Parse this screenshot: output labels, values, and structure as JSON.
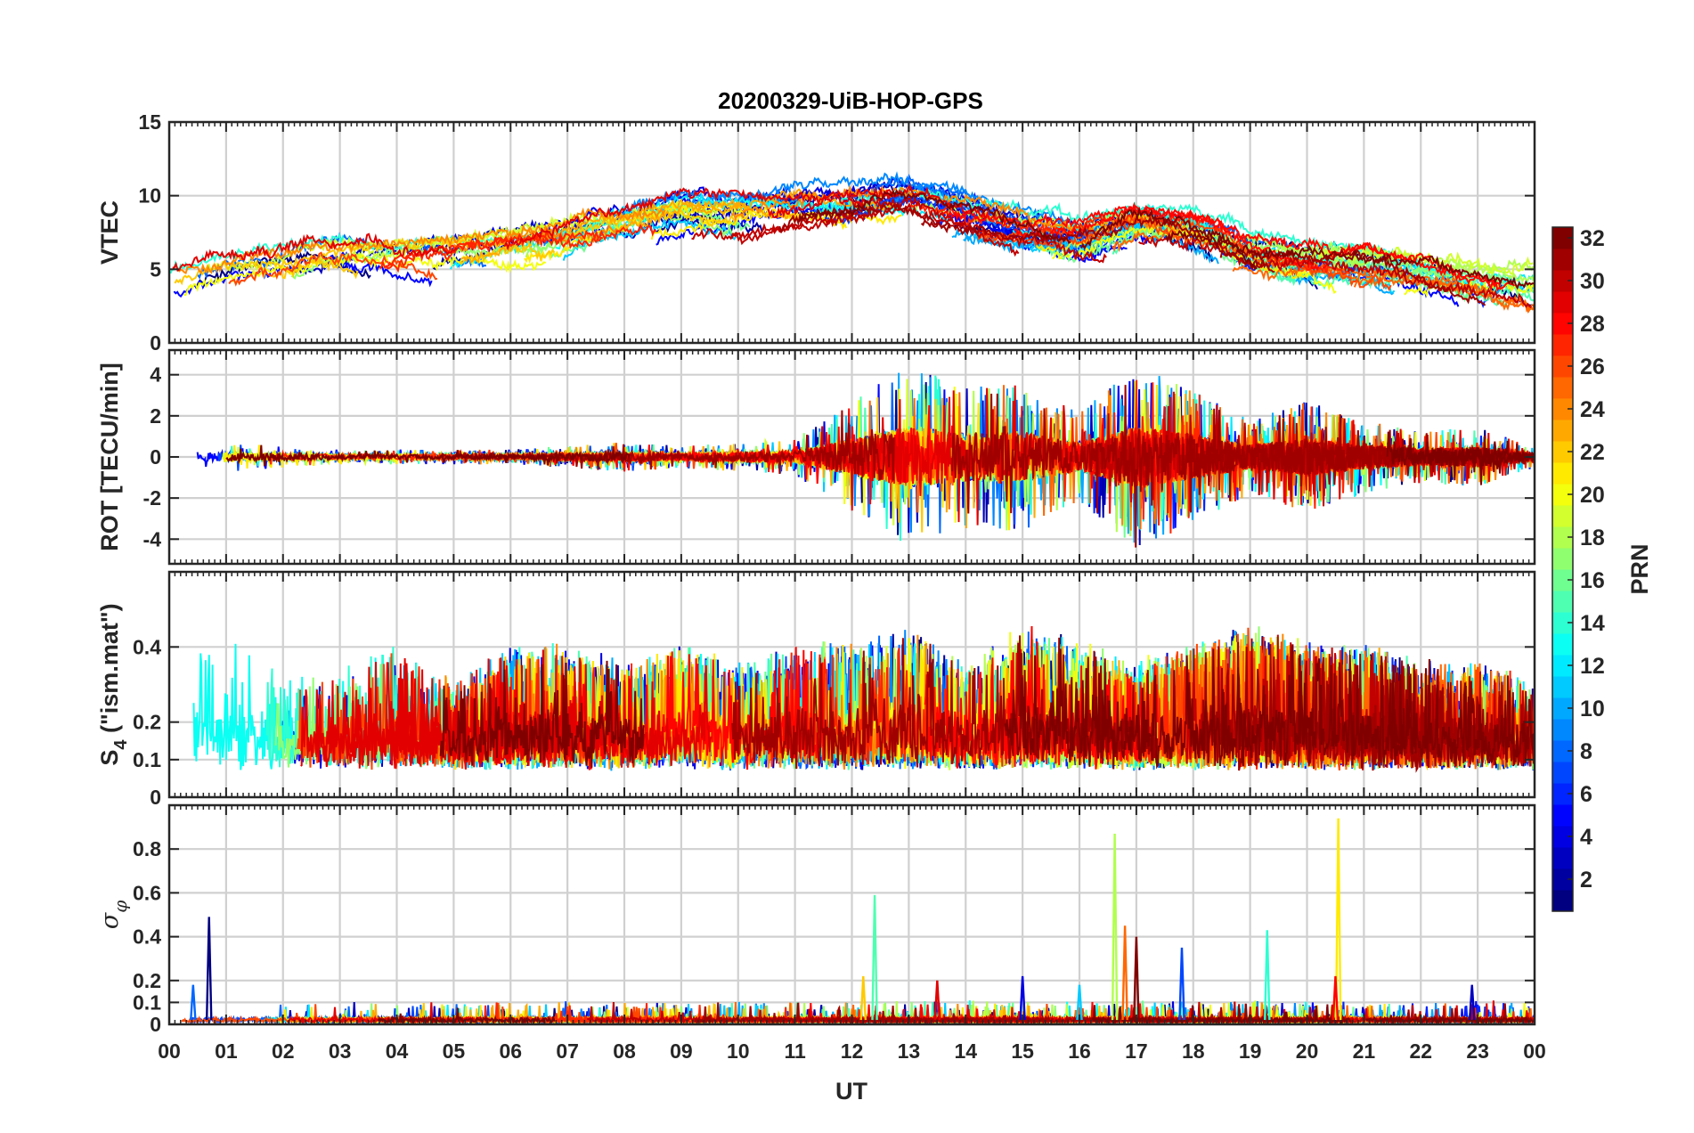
{
  "chart_data": {
    "type": "line",
    "title": "20200329-UiB-HOP-GPS",
    "xlabel": "UT",
    "x_tick_labels": [
      "00",
      "01",
      "02",
      "03",
      "04",
      "05",
      "06",
      "07",
      "08",
      "09",
      "10",
      "11",
      "12",
      "13",
      "14",
      "15",
      "16",
      "17",
      "18",
      "19",
      "20",
      "21",
      "22",
      "23",
      "00"
    ],
    "xlim": [
      0,
      24
    ],
    "grid": true,
    "series_description": "Multiple lines, one per GPS satellite PRN, colored by PRN (jet colormap)",
    "panels": [
      {
        "id": "vtec",
        "ylabel": "VTEC",
        "ylim": [
          0,
          15
        ],
        "y_ticks": [
          0,
          5,
          10,
          15
        ],
        "y_tick_labels": [
          "0",
          "5",
          "10",
          "15"
        ],
        "envelope": [
          [
            0,
            4
          ],
          [
            1,
            4.5
          ],
          [
            2,
            4.5
          ],
          [
            3,
            5
          ],
          [
            4,
            5
          ],
          [
            5,
            5.3
          ],
          [
            6,
            5.8
          ],
          [
            7,
            6.3
          ],
          [
            8,
            7.2
          ],
          [
            9,
            8
          ],
          [
            10,
            8
          ],
          [
            11,
            8.2
          ],
          [
            12,
            8.5
          ],
          [
            13,
            9
          ],
          [
            14,
            8
          ],
          [
            15,
            7
          ],
          [
            16,
            6.5
          ],
          [
            17,
            7.5
          ],
          [
            18,
            7
          ],
          [
            19,
            5.5
          ],
          [
            20,
            5
          ],
          [
            21,
            4.8
          ],
          [
            22,
            4.2
          ],
          [
            23,
            3.5
          ],
          [
            24,
            3.2
          ]
        ]
      },
      {
        "id": "rot",
        "ylabel": "ROT [TECU/min]",
        "ylim": [
          -5.2,
          5.2
        ],
        "y_ticks": [
          -4,
          -2,
          0,
          2,
          4
        ],
        "y_tick_labels": [
          "-4",
          "-2",
          "0",
          "2",
          "4"
        ],
        "activity": [
          [
            0,
            0.4
          ],
          [
            1,
            0.4
          ],
          [
            2,
            0.3
          ],
          [
            3,
            0.2
          ],
          [
            4,
            0.2
          ],
          [
            5,
            0.2
          ],
          [
            6,
            0.2
          ],
          [
            7,
            0.3
          ],
          [
            8,
            0.4
          ],
          [
            9,
            0.3
          ],
          [
            10,
            0.4
          ],
          [
            11,
            0.5
          ],
          [
            12,
            1.5
          ],
          [
            13,
            2.5
          ],
          [
            14,
            2
          ],
          [
            15,
            2
          ],
          [
            16,
            1.2
          ],
          [
            17,
            2.5
          ],
          [
            18,
            1.8
          ],
          [
            19,
            1
          ],
          [
            20,
            1.5
          ],
          [
            21,
            1
          ],
          [
            22,
            0.7
          ],
          [
            23,
            0.8
          ],
          [
            24,
            0.3
          ]
        ]
      },
      {
        "id": "s4",
        "ylabel": "S4 (\"ism.mat\")",
        "ylabel_main": "S",
        "ylabel_sub": "4",
        "ylabel_rest": " (\"ism.mat\")",
        "ylim": [
          0,
          0.6
        ],
        "y_ticks": [
          0,
          0.1,
          0.2,
          0.4
        ],
        "y_tick_labels": [
          "0",
          "0.1",
          "0.2",
          "0.4"
        ],
        "activity": [
          [
            0,
            0.25
          ],
          [
            1,
            0.35
          ],
          [
            2,
            0.2
          ],
          [
            3,
            0.25
          ],
          [
            4,
            0.3
          ],
          [
            5,
            0.2
          ],
          [
            6,
            0.3
          ],
          [
            7,
            0.3
          ],
          [
            8,
            0.25
          ],
          [
            9,
            0.3
          ],
          [
            10,
            0.25
          ],
          [
            11,
            0.3
          ],
          [
            12,
            0.3
          ],
          [
            13,
            0.35
          ],
          [
            14,
            0.25
          ],
          [
            15,
            0.35
          ],
          [
            16,
            0.3
          ],
          [
            17,
            0.25
          ],
          [
            18,
            0.3
          ],
          [
            19,
            0.35
          ],
          [
            20,
            0.3
          ],
          [
            21,
            0.3
          ],
          [
            22,
            0.25
          ],
          [
            23,
            0.25
          ],
          [
            24,
            0.2
          ]
        ]
      },
      {
        "id": "sigma-phi",
        "ylabel": "σ φ",
        "ylabel_main": "σ",
        "ylabel_sub": "φ",
        "ylim": [
          0,
          1
        ],
        "y_ticks": [
          0,
          0.1,
          0.2,
          0.4,
          0.6,
          0.8
        ],
        "y_tick_labels": [
          "0",
          "0.1",
          "0.2",
          "0.4",
          "0.6",
          "0.8"
        ],
        "spikes": [
          [
            0.7,
            0.49
          ],
          [
            0.42,
            0.18
          ],
          [
            12.4,
            0.59
          ],
          [
            12.2,
            0.22
          ],
          [
            13.5,
            0.2
          ],
          [
            15,
            0.22
          ],
          [
            16,
            0.18
          ],
          [
            16.62,
            0.87
          ],
          [
            16.8,
            0.45
          ],
          [
            17,
            0.4
          ],
          [
            17.8,
            0.35
          ],
          [
            19.3,
            0.43
          ],
          [
            20.55,
            0.94
          ],
          [
            20.5,
            0.22
          ],
          [
            22.9,
            0.18
          ]
        ]
      }
    ],
    "colorbar": {
      "label": "PRN",
      "range": [
        1,
        32
      ],
      "ticks": [
        2,
        4,
        6,
        8,
        10,
        12,
        14,
        16,
        18,
        20,
        22,
        24,
        26,
        28,
        30,
        32
      ],
      "tick_labels": [
        "2",
        "4",
        "6",
        "8",
        "10",
        "12",
        "14",
        "16",
        "18",
        "20",
        "22",
        "24",
        "26",
        "28",
        "30",
        "32"
      ],
      "colormap": "jet"
    }
  }
}
